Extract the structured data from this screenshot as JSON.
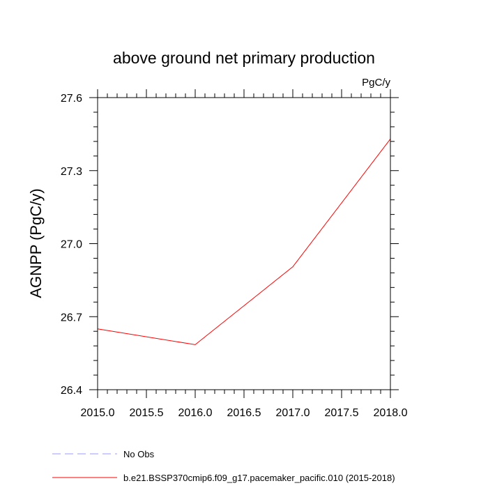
{
  "chart_data": {
    "type": "line",
    "title": "above ground net primary production",
    "units_label": "PgC/y",
    "ylabel": "AGNPP  (PgC/y)",
    "xlabel": "",
    "xlim": [
      2015.0,
      2018.0
    ],
    "ylim": [
      26.4,
      27.6
    ],
    "x_ticks": [
      "2015.0",
      "2015.5",
      "2016.0",
      "2016.5",
      "2017.0",
      "2017.5",
      "2018.0"
    ],
    "y_ticks": [
      "26.4",
      "26.7",
      "27.0",
      "27.3",
      "27.6"
    ],
    "grid": false,
    "legend_position": "bottom",
    "series": [
      {
        "name": "b.e21.BSSP370cmip6.f09_g17.pacemaker_pacific.010 (2015-2018)",
        "color": "#ff0000",
        "line_style": "solid",
        "x": [
          2015.0,
          2016.0,
          2017.0,
          2018.0
        ],
        "y": [
          26.65,
          26.585,
          26.905,
          27.43
        ]
      }
    ],
    "legend": [
      {
        "label": "No Obs",
        "color": "#9999ff",
        "line_style": "dashed"
      },
      {
        "label": "b.e21.BSSP370cmip6.f09_g17.pacemaker_pacific.010 (2015-2018)",
        "color": "#ff0000",
        "line_style": "solid"
      }
    ]
  }
}
